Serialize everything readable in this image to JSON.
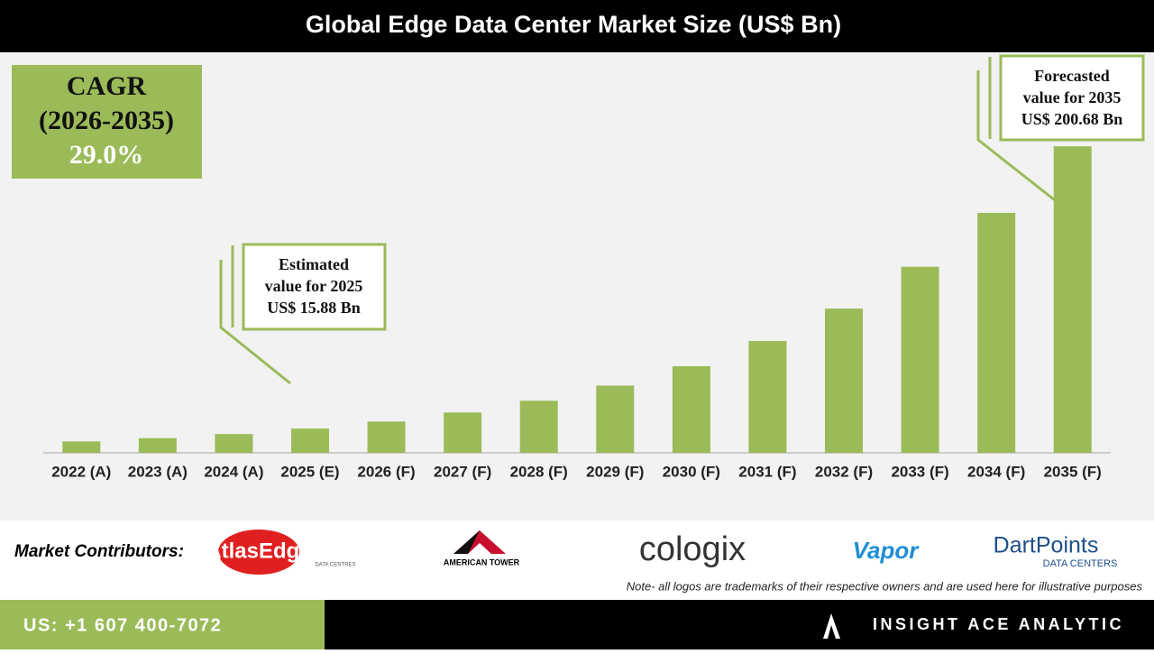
{
  "chart_data": {
    "type": "bar",
    "title": "Global Edge Data Center Market Size (US$ Bn)",
    "categories": [
      "2022 (A)",
      "2023 (A)",
      "2024 (A)",
      "2025 (E)",
      "2026 (F)",
      "2027 (F)",
      "2028 (F)",
      "2029 (F)",
      "2030 (F)",
      "2031 (F)",
      "2032 (F)",
      "2033 (F)",
      "2034 (F)",
      "2035 (F)"
    ],
    "values": [
      7.5,
      9.6,
      12.3,
      15.88,
      20.5,
      26.4,
      34.1,
      44.0,
      56.7,
      73.2,
      94.4,
      121.8,
      157.1,
      200.68
    ],
    "color": "#9bbb59",
    "ylim": [
      0,
      261
    ],
    "cagr": {
      "lines": [
        "CAGR",
        "(2026-2035)",
        "29.0%"
      ]
    },
    "annotations": [
      {
        "lines": [
          "Estimated",
          "value for 2025",
          "US$ 15.88 Bn"
        ]
      },
      {
        "lines": [
          "Forecasted",
          "value for 2035",
          "US$ 200.68 Bn"
        ]
      }
    ]
  },
  "footer": {
    "contributors_label": "Market Contributors:",
    "logos": [
      "AtlasEdge",
      "DATA CENTRES",
      "AMERICAN TOWER",
      "cologix",
      "Vapor",
      "DartPoints",
      "DATA CENTERS"
    ],
    "note": "Note- all logos are trademarks of their respective owners and are used here for illustrative purposes",
    "phone": "US: +1 607 400-7072",
    "brand": "INSIGHT ACE ANALYTIC"
  }
}
